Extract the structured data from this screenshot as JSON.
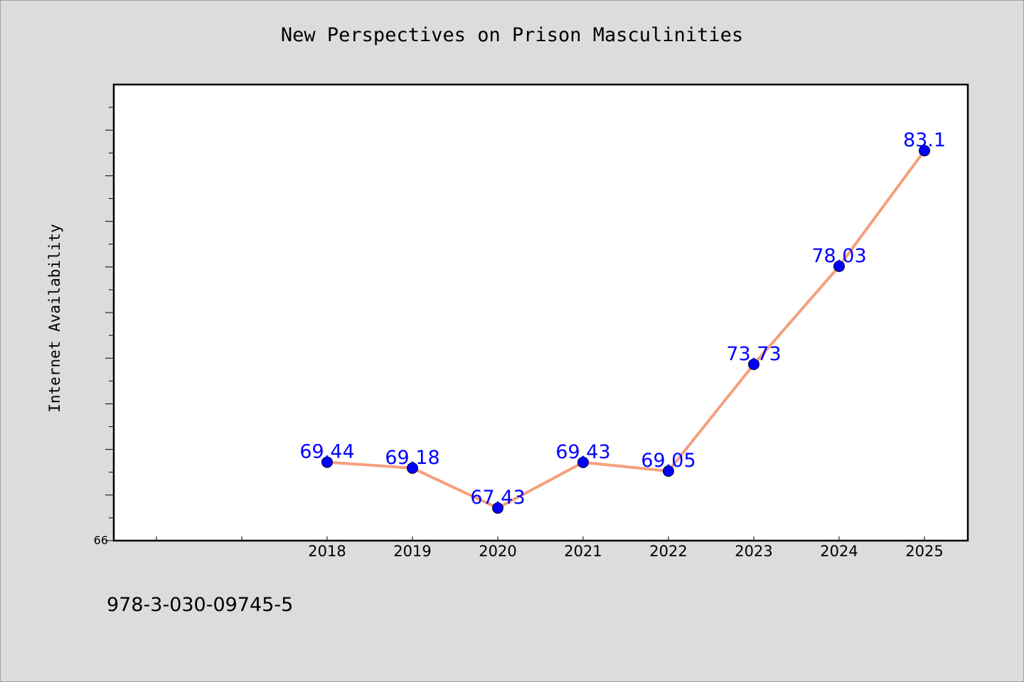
{
  "page": {
    "background": "#dcdcdc",
    "footer_text": "978-3-030-09745-5"
  },
  "chart_data": {
    "type": "line",
    "title": "New Perspectives on Prison Masculinities",
    "xlabel": "",
    "ylabel": "Internet Availability",
    "categories": [
      "2018",
      "2019",
      "2020",
      "2021",
      "2022",
      "2023",
      "2024",
      "2025"
    ],
    "series": [
      {
        "values": [
          69.44,
          69.18,
          67.43,
          69.43,
          69.05,
          73.73,
          78.03,
          83.1
        ],
        "labels": [
          "69.44",
          "69.18",
          "67.43",
          "69.43",
          "69.05",
          "73.73",
          "78.03",
          "83.1"
        ]
      }
    ],
    "ylim": [
      66,
      86
    ],
    "y_tick_labels": [
      "66"
    ],
    "grid": false,
    "legend": "none",
    "colors": {
      "line": "#f4a07c",
      "marker": "#0000ff",
      "data_label": "#0000ff",
      "plot_background": "#ffffff",
      "axes": "#000000"
    }
  }
}
